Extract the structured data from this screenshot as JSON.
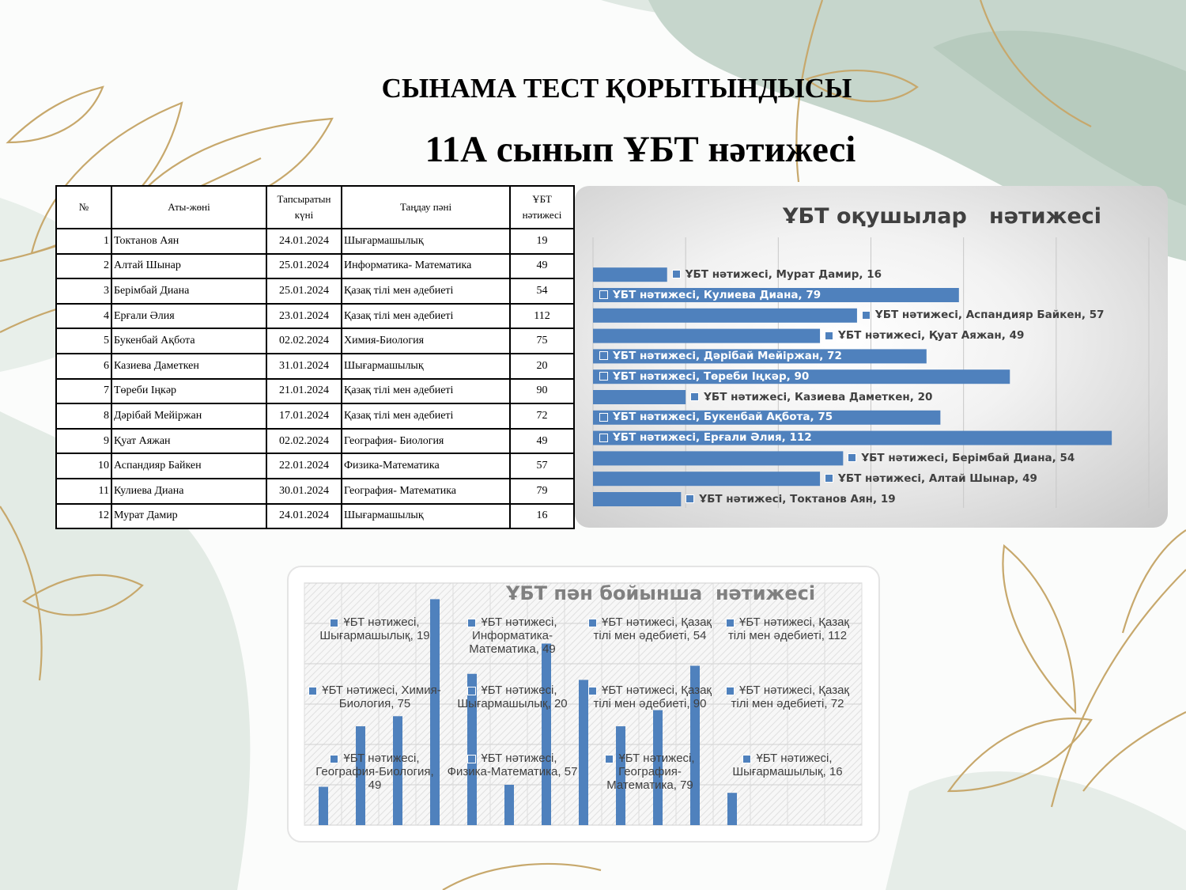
{
  "slide": {
    "title": "СЫНАМА ТЕСТ ҚОРЫТЫНДЫСЫ",
    "subtitle": "11А сынып ҰБТ нәтижесі"
  },
  "table": {
    "headers": [
      "№",
      "Аты-жөні",
      "Тапсыратын күні",
      "Таңдау пәні",
      "ҰБТ нәтижесі"
    ],
    "rows": [
      {
        "n": "1",
        "name": "Токтанов Аян",
        "date": "24.01.2024",
        "subject": "Шығармашылық",
        "score": "19"
      },
      {
        "n": "2",
        "name": "Алтай Шынар",
        "date": "25.01.2024",
        "subject": "Информатика- Математика",
        "score": "49"
      },
      {
        "n": "3",
        "name": "Берімбай Диана",
        "date": "25.01.2024",
        "subject": "Қазақ тілі мен әдебиеті",
        "score": "54"
      },
      {
        "n": "4",
        "name": "Ерғали Әлия",
        "date": "23.01.2024",
        "subject": "Қазақ тілі мен әдебиеті",
        "score": "112"
      },
      {
        "n": "5",
        "name": "Букенбай Ақбота",
        "date": "02.02.2024",
        "subject": "Химия-Биология",
        "score": "75"
      },
      {
        "n": "6",
        "name": "Казиева Даметкен",
        "date": "31.01.2024",
        "subject": "Шығармашылық",
        "score": "20"
      },
      {
        "n": "7",
        "name": "Төреби Іңкәр",
        "date": "21.01.2024",
        "subject": "Қазақ тілі мен әдебиеті",
        "score": "90"
      },
      {
        "n": "8",
        "name": "Дәрібай Мейіржан",
        "date": "17.01.2024",
        "subject": "Қазақ тілі мен әдебиеті",
        "score": "72"
      },
      {
        "n": "9",
        "name": "Қуат Аяжан",
        "date": "02.02.2024",
        "subject": "География- Биология",
        "score": "49"
      },
      {
        "n": "10",
        "name": "Аспандияр Байкен",
        "date": "22.01.2024",
        "subject": "Физика-Математика",
        "score": "57"
      },
      {
        "n": "11",
        "name": "Кулиева Диана",
        "date": "30.01.2024",
        "subject": "География- Математика",
        "score": "79"
      },
      {
        "n": "12",
        "name": "Мурат Дамир",
        "date": "24.01.2024",
        "subject": "Шығармашылық",
        "score": "16"
      }
    ]
  },
  "chart_data": [
    {
      "type": "bar",
      "orientation": "horizontal",
      "title": "ҰБТ оқушылар   нәтижесі",
      "series": [
        {
          "name": "ҰБТ  нәтижесі",
          "values": [
            19,
            49,
            54,
            112,
            75,
            20,
            90,
            72,
            49,
            57,
            79,
            16
          ]
        }
      ],
      "categories": [
        "Токтанов Аян",
        "Алтай Шынар",
        "Берімбай Диана",
        "Ерғали Әлия",
        "Букенбай Ақбота",
        "Казиева Даметкен",
        "Төреби Іңкәр",
        "Дәрібай Мейіржан",
        "Қуат Аяжан",
        "Аспандияр Байкен",
        "Кулиева Диана",
        "Мурат Дамир"
      ],
      "xlim": [
        0,
        120
      ],
      "grid": true,
      "color": "#4f81bd"
    },
    {
      "type": "bar",
      "orientation": "vertical",
      "title": "ҰБТ пән бойынша  нәтижесі",
      "series": [
        {
          "name": "ҰБТ  нәтижесі",
          "values": [
            19,
            49,
            54,
            112,
            75,
            20,
            90,
            72,
            49,
            57,
            79,
            16
          ]
        }
      ],
      "categories": [
        "Шығармашылық",
        "Информатика-Математика",
        "Қазақ тілі мен әдебиеті",
        "Қазақ тілі мен әдебиеті",
        "Химия-Биология",
        "Шығармашылық",
        "Қазақ тілі мен әдебиеті",
        "Қазақ тілі мен әдебиеті",
        "География-Биология",
        "Физика-Математика",
        "География-Математика",
        "Шығармашылық"
      ],
      "ylim": [
        0,
        120
      ],
      "grid": true,
      "color": "#4f81bd"
    }
  ]
}
